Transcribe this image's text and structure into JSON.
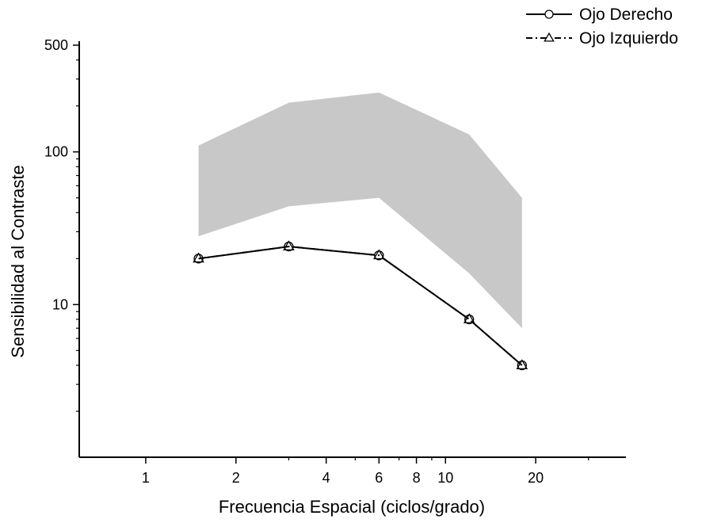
{
  "chart_data": {
    "type": "line",
    "xlabel": "Frecuencia Espacial (ciclos/grado)",
    "ylabel": "Sensibilidad al Contraste",
    "x_scale": "log",
    "y_scale": "log",
    "xlim": [
      0.6,
      40
    ],
    "ylim": [
      1,
      500
    ],
    "x_ticks": [
      1,
      2,
      4,
      6,
      8,
      10,
      20
    ],
    "y_ticks": [
      10,
      100,
      500
    ],
    "grid": false,
    "legend_position": "top-right",
    "normal_range_band": {
      "x": [
        1.5,
        3,
        6,
        12,
        18
      ],
      "lower": [
        28,
        44,
        50,
        16,
        7
      ],
      "upper": [
        110,
        210,
        245,
        130,
        50
      ]
    },
    "series": [
      {
        "name": "Ojo Derecho",
        "marker": "circle",
        "line": "solid",
        "x": [
          1.5,
          3,
          6,
          12,
          18
        ],
        "y": [
          20,
          24,
          21,
          8,
          4
        ]
      },
      {
        "name": "Ojo Izquierdo",
        "marker": "triangle",
        "line": "dash-dot",
        "x": [
          1.5,
          3,
          6,
          12,
          18
        ],
        "y": [
          20,
          24,
          21,
          8,
          4
        ]
      }
    ],
    "colors": {
      "line": "#000000",
      "band": "#c8c8c8",
      "background": "#ffffff"
    }
  }
}
